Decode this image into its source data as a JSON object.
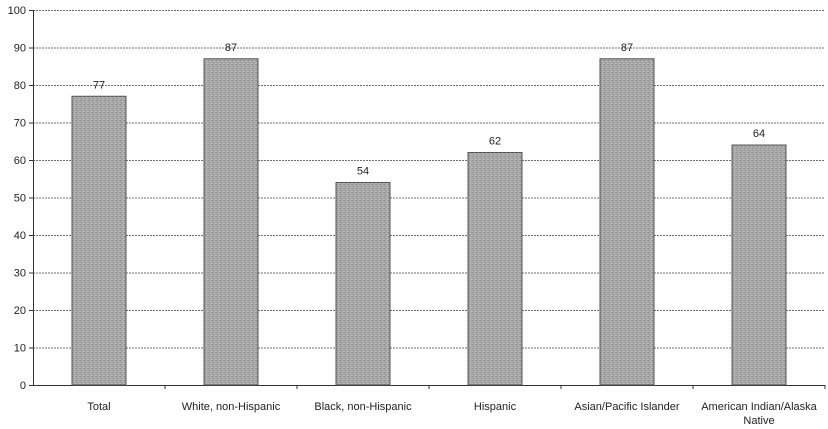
{
  "chart_data": {
    "type": "bar",
    "categories": [
      "Total",
      "White, non-Hispanic",
      "Black, non-Hispanic",
      "Hispanic",
      "Asian/Pacific Islander",
      [
        "American Indian/Alaska",
        "Native"
      ]
    ],
    "values": [
      77,
      87,
      54,
      62,
      87,
      64
    ],
    "title": "",
    "xlabel": "",
    "ylabel": "",
    "ylim": [
      0,
      100
    ],
    "yticks": [
      0,
      10,
      20,
      30,
      40,
      50,
      60,
      70,
      80,
      90,
      100
    ],
    "grid": true,
    "legend": "none",
    "colors": {
      "bar_fill": "#a6a6a6",
      "bar_stroke": "#555555",
      "grid": "#6f6f6f",
      "axis": "#333333"
    }
  }
}
